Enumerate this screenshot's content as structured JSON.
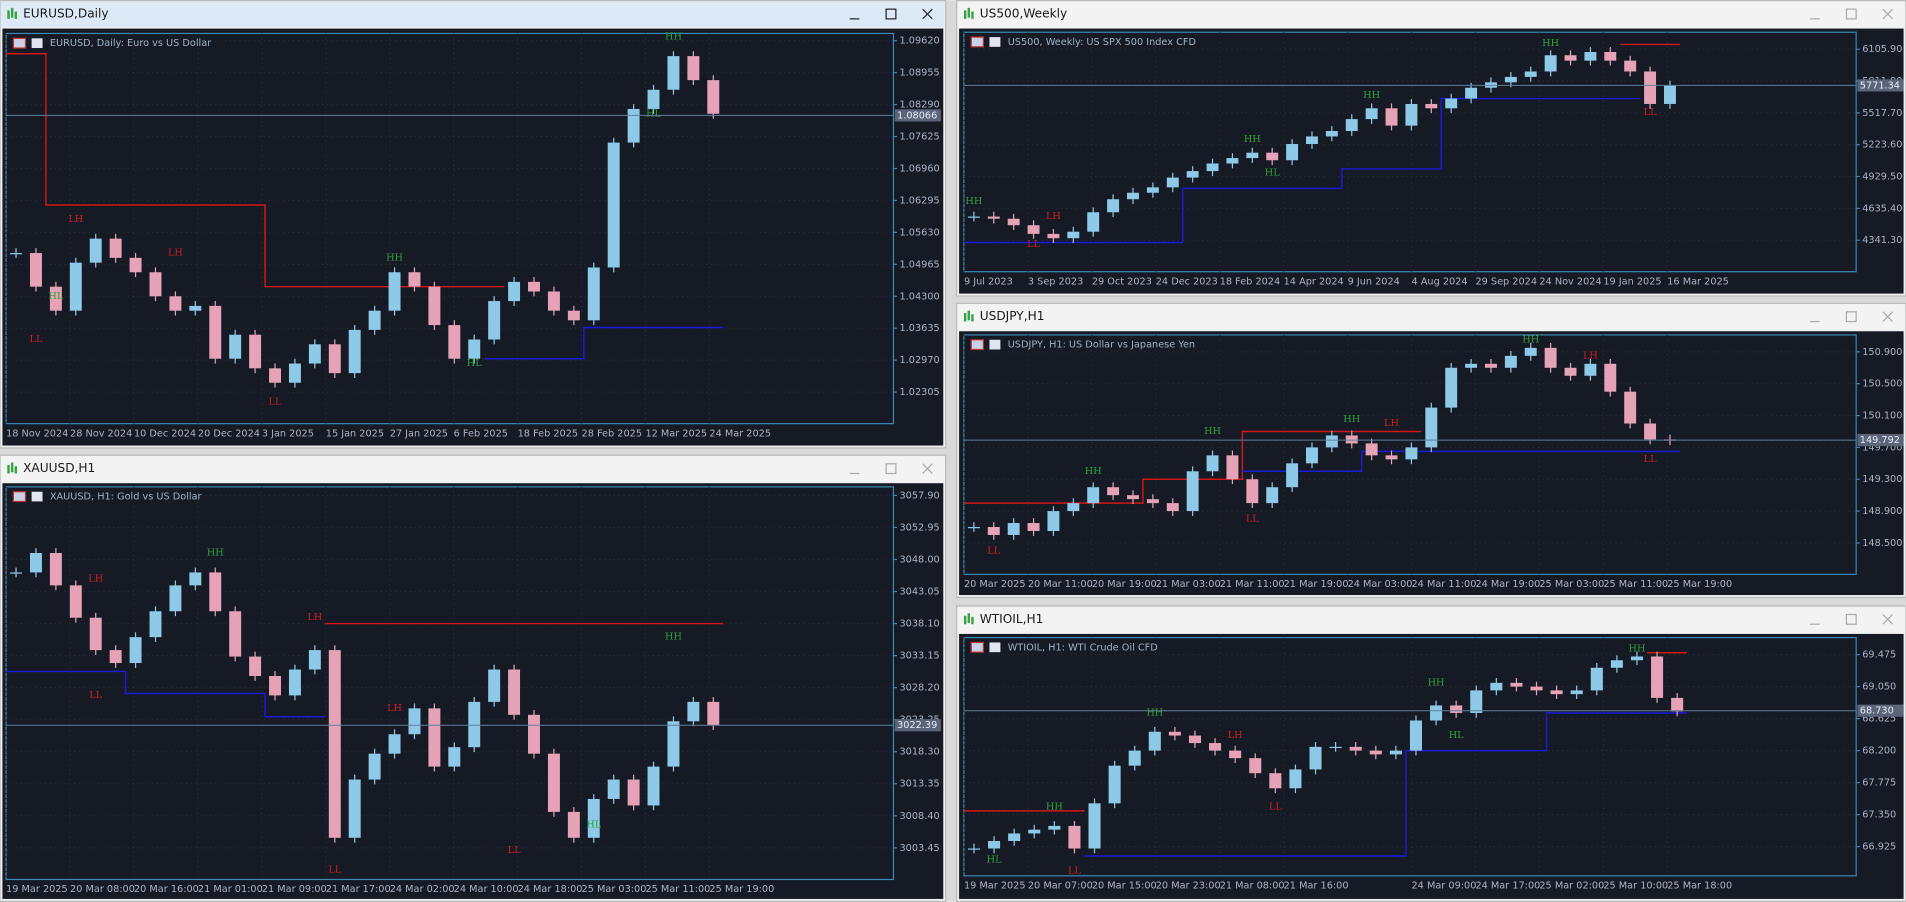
{
  "windows": [
    {
      "title": "EURUSD,Daily",
      "description": "EURUSD, Daily:  Euro vs US Dollar",
      "active": true,
      "ylim": [
        1.01648,
        1.09772
      ],
      "yticks": [
        {
          "value": 1.0962,
          "label": "1.09620"
        },
        1.08955,
        {
          "value": 1.0829,
          "label": "1.08290"
        },
        1.07625,
        {
          "value": 1.0696,
          "label": "1.06960"
        },
        1.06295,
        {
          "value": 1.0563,
          "label": "1.05630"
        },
        1.04965,
        {
          "value": 1.043,
          "label": "1.04300"
        },
        1.03635,
        {
          "value": 1.0297,
          "label": "1.02970"
        },
        1.02305
      ],
      "current": 1.08066,
      "xlabels": [
        "18 Nov 2024",
        "28 Nov 2024",
        "10 Dec 2024",
        "20 Dec 2024",
        "3 Jan 2025",
        "15 Jan 2025",
        "27 Jan 2025",
        "6 Feb 2025",
        "18 Feb 2025",
        "28 Feb 2025",
        "12 Mar 2025",
        "24 Mar 2025"
      ],
      "closes": [
        1.052,
        1.045,
        1.04,
        1.05,
        1.055,
        1.051,
        1.048,
        1.043,
        1.04,
        1.041,
        1.03,
        1.035,
        1.028,
        1.025,
        1.029,
        1.033,
        1.027,
        1.036,
        1.04,
        1.048,
        1.045,
        1.037,
        1.03,
        1.034,
        1.042,
        1.046,
        1.044,
        1.04,
        1.038,
        1.049,
        1.075,
        1.082,
        1.086,
        1.093,
        1.088,
        1.081
      ],
      "upper": [
        1.0935,
        1.0935,
        1.062,
        1.062,
        1.062,
        1.062,
        1.062,
        1.062,
        1.062,
        1.062,
        1.062,
        1.062,
        1.062,
        1.045,
        1.045,
        1.045,
        1.045,
        1.045,
        1.045,
        1.045,
        1.045,
        1.045,
        1.045,
        1.045,
        1.045,
        null,
        null,
        null,
        null,
        null,
        null,
        null,
        null,
        null,
        null,
        null
      ],
      "lower": [
        null,
        null,
        null,
        null,
        null,
        null,
        null,
        null,
        null,
        null,
        null,
        null,
        null,
        null,
        null,
        null,
        null,
        null,
        null,
        null,
        null,
        null,
        null,
        null,
        1.03,
        1.03,
        1.03,
        1.03,
        1.03,
        1.0365,
        1.0365,
        1.0365,
        1.0365,
        1.0365,
        1.0365,
        1.0365
      ],
      "markers": [
        {
          "label": "LH",
          "bar": 3,
          "value": 1.059
        },
        {
          "label": "LL",
          "bar": 1,
          "value": 1.034
        },
        {
          "label": "HL",
          "bar": 2,
          "value": 1.043
        },
        {
          "label": "LH",
          "bar": 8,
          "value": 1.052
        },
        {
          "label": "LL",
          "bar": 13,
          "value": 1.021
        },
        {
          "label": "HH",
          "bar": 19,
          "value": 1.051
        },
        {
          "label": "HL",
          "bar": 23,
          "value": 1.029
        },
        {
          "label": "HH",
          "bar": 33,
          "value": 1.097
        },
        {
          "label": "HL",
          "bar": 32,
          "value": 1.081
        }
      ]
    },
    {
      "title": "XAUUSD,H1",
      "description": "XAUUSD, H1:  Gold vs US Dollar",
      "active": false,
      "ylim": [
        2998.56,
        3059.22
      ],
      "yticks": [
        {
          "value": 3057.9,
          "label": "3057.90"
        },
        3052.95,
        {
          "value": 3048,
          "label": "3048.00"
        },
        3043.05,
        {
          "value": 3038.1,
          "label": "3038.10"
        },
        3033.15,
        {
          "value": 3028.2,
          "label": "3028.20"
        },
        3023.25,
        {
          "value": 3018.3,
          "label": "3018.30"
        },
        3013.35,
        {
          "value": 3008.4,
          "label": "3008.40"
        },
        3003.45
      ],
      "current": 3022.39,
      "xlabels": [
        "19 Mar 2025",
        "20 Mar 08:00",
        "20 Mar 16:00",
        "21 Mar 01:00",
        "21 Mar 09:00",
        "21 Mar 17:00",
        "24 Mar 02:00",
        "24 Mar 10:00",
        "24 Mar 18:00",
        "25 Mar 03:00",
        "25 Mar 11:00",
        "25 Mar 19:00"
      ],
      "closes": [
        3046,
        3049,
        3044,
        3039,
        3034,
        3032,
        3036,
        3040,
        3044,
        3046,
        3040,
        3033,
        3030,
        3027,
        3031,
        3034,
        3005,
        3014,
        3018,
        3021,
        3025,
        3016,
        3019,
        3026,
        3031,
        3024,
        3018,
        3009,
        3005,
        3011,
        3014,
        3010,
        3016,
        3023,
        3026,
        3022.4
      ],
      "upper": [
        null,
        null,
        null,
        null,
        null,
        null,
        null,
        null,
        null,
        null,
        null,
        null,
        null,
        null,
        null,
        null,
        3038.1,
        3038.1,
        3038.1,
        3038.1,
        3038.1,
        3038.1,
        3038.1,
        3038.1,
        3038.1,
        3038.1,
        3038.1,
        3038.1,
        3038.1,
        3038.1,
        3038.1,
        3038.1,
        3038.1,
        3038.1,
        3038.1,
        3038.1
      ],
      "lower": [
        3030.7,
        3030.7,
        3030.7,
        3030.7,
        3030.7,
        3030.7,
        3027.3,
        3027.3,
        3027.3,
        3027.3,
        3027.3,
        3027.3,
        3027.3,
        3023.7,
        3023.7,
        3023.7,
        null,
        null,
        null,
        null,
        null,
        null,
        null,
        null,
        null,
        null,
        null,
        null,
        null,
        null,
        null,
        null,
        null,
        null,
        null,
        null
      ],
      "markers": [
        {
          "label": "LH",
          "bar": 4,
          "value": 3045
        },
        {
          "label": "LL",
          "bar": 4,
          "value": 3027
        },
        {
          "label": "HH",
          "bar": 10,
          "value": 3049
        },
        {
          "label": "LH",
          "bar": 15,
          "value": 3039
        },
        {
          "label": "LL",
          "bar": 16,
          "value": 3000
        },
        {
          "label": "LH",
          "bar": 19,
          "value": 3025
        },
        {
          "label": "HH",
          "bar": 33,
          "value": 3036
        },
        {
          "label": "LL",
          "bar": 25,
          "value": 3003
        },
        {
          "label": "HL",
          "bar": 29,
          "value": 3007
        }
      ]
    },
    {
      "title": "US500,Weekly",
      "description": "US500, Weekly:  US SPX 500 Index CFD",
      "active": false,
      "ylim": [
        4050.6,
        6262.5
      ],
      "yticks": [
        {
          "value": 6105.9,
          "label": "6105.90"
        },
        {
          "value": 5811.8,
          "label": "5811.80"
        },
        {
          "value": 5517.7,
          "label": "5517.70"
        },
        {
          "value": 5223.6,
          "label": "5223.60"
        },
        {
          "value": 4929.5,
          "label": "4929.50"
        },
        {
          "value": 4635.4,
          "label": "4635.40"
        },
        {
          "value": 4341.3,
          "label": "4341.30"
        }
      ],
      "current": 5771.34,
      "xlabels": [
        "9 Jul 2023",
        "3 Sep 2023",
        "29 Oct 2023",
        "24 Dec 2023",
        "18 Feb 2024",
        "14 Apr 2024",
        "9 Jun 2024",
        "4 Aug 2024",
        "29 Sep 2024",
        "24 Nov 2024",
        "19 Jan 2025",
        "16 Mar 2025"
      ],
      "closes": [
        4560,
        4540,
        4480,
        4400,
        4360,
        4420,
        4600,
        4720,
        4780,
        4830,
        4920,
        4980,
        5050,
        5100,
        5150,
        5080,
        5230,
        5300,
        5350,
        5460,
        5560,
        5400,
        5600,
        5560,
        5650,
        5750,
        5800,
        5850,
        5900,
        6050,
        6000,
        6080,
        6000,
        5900,
        5600,
        5770
      ],
      "upper": [
        null,
        null,
        null,
        null,
        null,
        null,
        null,
        null,
        null,
        null,
        null,
        null,
        null,
        null,
        null,
        null,
        null,
        null,
        null,
        null,
        null,
        null,
        null,
        null,
        null,
        null,
        null,
        null,
        null,
        null,
        null,
        null,
        null,
        6150,
        6150,
        6150
      ],
      "lower": [
        4320,
        4320,
        4320,
        4320,
        4320,
        4320,
        4320,
        4320,
        4320,
        4320,
        4320,
        4820,
        4820,
        4820,
        4820,
        4820,
        4820,
        4820,
        4820,
        5000,
        5000,
        5000,
        5000,
        5000,
        5650,
        5650,
        5650,
        5650,
        5650,
        5650,
        5650,
        5650,
        5650,
        5650,
        null,
        null
      ],
      "markers": [
        {
          "label": "HH",
          "bar": 0,
          "value": 4700
        },
        {
          "label": "LL",
          "bar": 3,
          "value": 4300
        },
        {
          "label": "LH",
          "bar": 4,
          "value": 4560
        },
        {
          "label": "HH",
          "bar": 14,
          "value": 5270
        },
        {
          "label": "HL",
          "bar": 15,
          "value": 4960
        },
        {
          "label": "HH",
          "bar": 20,
          "value": 5680
        },
        {
          "label": "HH",
          "bar": 29,
          "value": 6160
        },
        {
          "label": "LL",
          "bar": 34,
          "value": 5520
        }
      ]
    },
    {
      "title": "USDJPY,H1",
      "description": "USDJPY, H1:  US Dollar vs Japanese Yen",
      "active": false,
      "ylim": [
        148.105,
        151.113
      ],
      "yticks": [
        {
          "value": 150.9,
          "label": "150.900"
        },
        {
          "value": 150.5,
          "label": "150.500"
        },
        {
          "value": 150.1,
          "label": "150.100"
        },
        {
          "value": 149.7,
          "label": "149.700"
        },
        {
          "value": 149.3,
          "label": "149.300"
        },
        {
          "value": 148.9,
          "label": "148.900"
        },
        {
          "value": 148.5,
          "label": "148.500"
        }
      ],
      "current": 149.792,
      "xlabels": [
        "20 Mar 2025",
        "20 Mar 11:00",
        "20 Mar 19:00",
        "21 Mar 03:00",
        "21 Mar 11:00",
        "21 Mar 19:00",
        "24 Mar 03:00",
        "24 Mar 11:00",
        "24 Mar 19:00",
        "25 Mar 03:00",
        "25 Mar 11:00",
        "25 Mar 19:00"
      ],
      "closes": [
        148.7,
        148.6,
        148.75,
        148.65,
        148.9,
        149,
        149.2,
        149.1,
        149.05,
        149,
        148.9,
        149.4,
        149.6,
        149.3,
        149,
        149.2,
        149.5,
        149.7,
        149.85,
        149.75,
        149.6,
        149.55,
        149.7,
        150.2,
        150.7,
        150.75,
        150.7,
        150.85,
        150.95,
        150.7,
        150.6,
        150.75,
        150.4,
        150,
        149.8,
        149.79
      ],
      "upper": [
        149,
        149,
        149,
        149,
        149,
        149,
        149,
        149,
        149,
        149.3,
        149.3,
        149.3,
        149.3,
        149.3,
        149.9,
        149.9,
        149.9,
        149.9,
        149.9,
        149.9,
        149.9,
        149.9,
        149.9,
        null,
        null,
        null,
        null,
        null,
        null,
        null,
        null,
        null,
        null,
        null,
        null,
        null
      ],
      "lower": [
        null,
        null,
        null,
        null,
        null,
        null,
        null,
        null,
        null,
        null,
        null,
        null,
        null,
        null,
        149.4,
        149.4,
        149.4,
        149.4,
        149.4,
        149.4,
        149.65,
        149.65,
        149.65,
        149.65,
        149.65,
        149.65,
        149.65,
        149.65,
        149.65,
        149.65,
        149.65,
        149.65,
        149.65,
        149.65,
        149.65,
        149.65
      ],
      "markers": [
        {
          "label": "LL",
          "bar": 1,
          "value": 148.4
        },
        {
          "label": "HH",
          "bar": 6,
          "value": 149.4
        },
        {
          "label": "HH",
          "bar": 12,
          "value": 149.9
        },
        {
          "label": "LL",
          "bar": 14,
          "value": 148.8
        },
        {
          "label": "HH",
          "bar": 19,
          "value": 150.05
        },
        {
          "label": "LH",
          "bar": 21,
          "value": 150
        },
        {
          "label": "HH",
          "bar": 28,
          "value": 151.05
        },
        {
          "label": "LH",
          "bar": 31,
          "value": 150.85
        },
        {
          "label": "LL",
          "bar": 34,
          "value": 149.55
        }
      ]
    },
    {
      "title": "WTIOIL,H1",
      "description": "WTIOIL, H1:  WTI Crude Oil CFD",
      "active": false,
      "ylim": [
        66.537,
        69.701
      ],
      "yticks": [
        69.475,
        {
          "value": 69.05,
          "label": "69.050"
        },
        68.625,
        {
          "value": 68.2,
          "label": "68.200"
        },
        67.775,
        {
          "value": 67.35,
          "label": "67.350"
        },
        66.925
      ],
      "current": {
        "value": 68.73,
        "label": "68.730"
      },
      "xlabels": [
        "19 Mar 2025",
        "20 Mar 07:00",
        "20 Mar 15:00",
        "20 Mar 23:00",
        "21 Mar 08:00",
        "21 Mar 16:00",
        "24 Mar 09:00",
        "24 Mar 17:00",
        "25 Mar 02:00",
        "25 Mar 10:00",
        "25 Mar 18:00"
      ],
      "closes": [
        66.9,
        67,
        67.1,
        67.15,
        67.2,
        66.9,
        67.5,
        68,
        68.2,
        68.45,
        68.4,
        68.3,
        68.2,
        68.1,
        67.9,
        67.7,
        67.95,
        68.25,
        68.25,
        68.2,
        68.15,
        68.2,
        68.6,
        68.8,
        68.7,
        69,
        69.1,
        69.05,
        69,
        68.95,
        69,
        69.3,
        69.4,
        69.45,
        68.9,
        68.72
      ],
      "upper": [
        67.4,
        67.4,
        67.4,
        67.4,
        67.4,
        67.4,
        null,
        null,
        null,
        null,
        null,
        null,
        null,
        null,
        null,
        null,
        null,
        null,
        null,
        null,
        null,
        null,
        null,
        null,
        null,
        null,
        null,
        null,
        null,
        null,
        null,
        null,
        null,
        null,
        69.5,
        69.5
      ],
      "lower": [
        null,
        null,
        null,
        null,
        null,
        null,
        66.8,
        66.8,
        66.8,
        66.8,
        66.8,
        66.8,
        66.8,
        66.8,
        66.8,
        66.8,
        66.8,
        66.8,
        66.8,
        66.8,
        66.8,
        66.8,
        68.2,
        68.2,
        68.2,
        68.2,
        68.2,
        68.2,
        68.2,
        68.7,
        68.7,
        68.7,
        68.7,
        68.7,
        68.7,
        68.7
      ],
      "markers": [
        {
          "label": "HL",
          "bar": 1,
          "value": 66.75
        },
        {
          "label": "HH",
          "bar": 4,
          "value": 67.45
        },
        {
          "label": "LL",
          "bar": 5,
          "value": 66.6
        },
        {
          "label": "HH",
          "bar": 9,
          "value": 68.7
        },
        {
          "label": "LH",
          "bar": 13,
          "value": 68.4
        },
        {
          "label": "LL",
          "bar": 15,
          "value": 67.45
        },
        {
          "label": "HH",
          "bar": 23,
          "value": 69.1
        },
        {
          "label": "HL",
          "bar": 24,
          "value": 68.4
        },
        {
          "label": "HH",
          "bar": 33,
          "value": 69.55
        }
      ]
    }
  ]
}
